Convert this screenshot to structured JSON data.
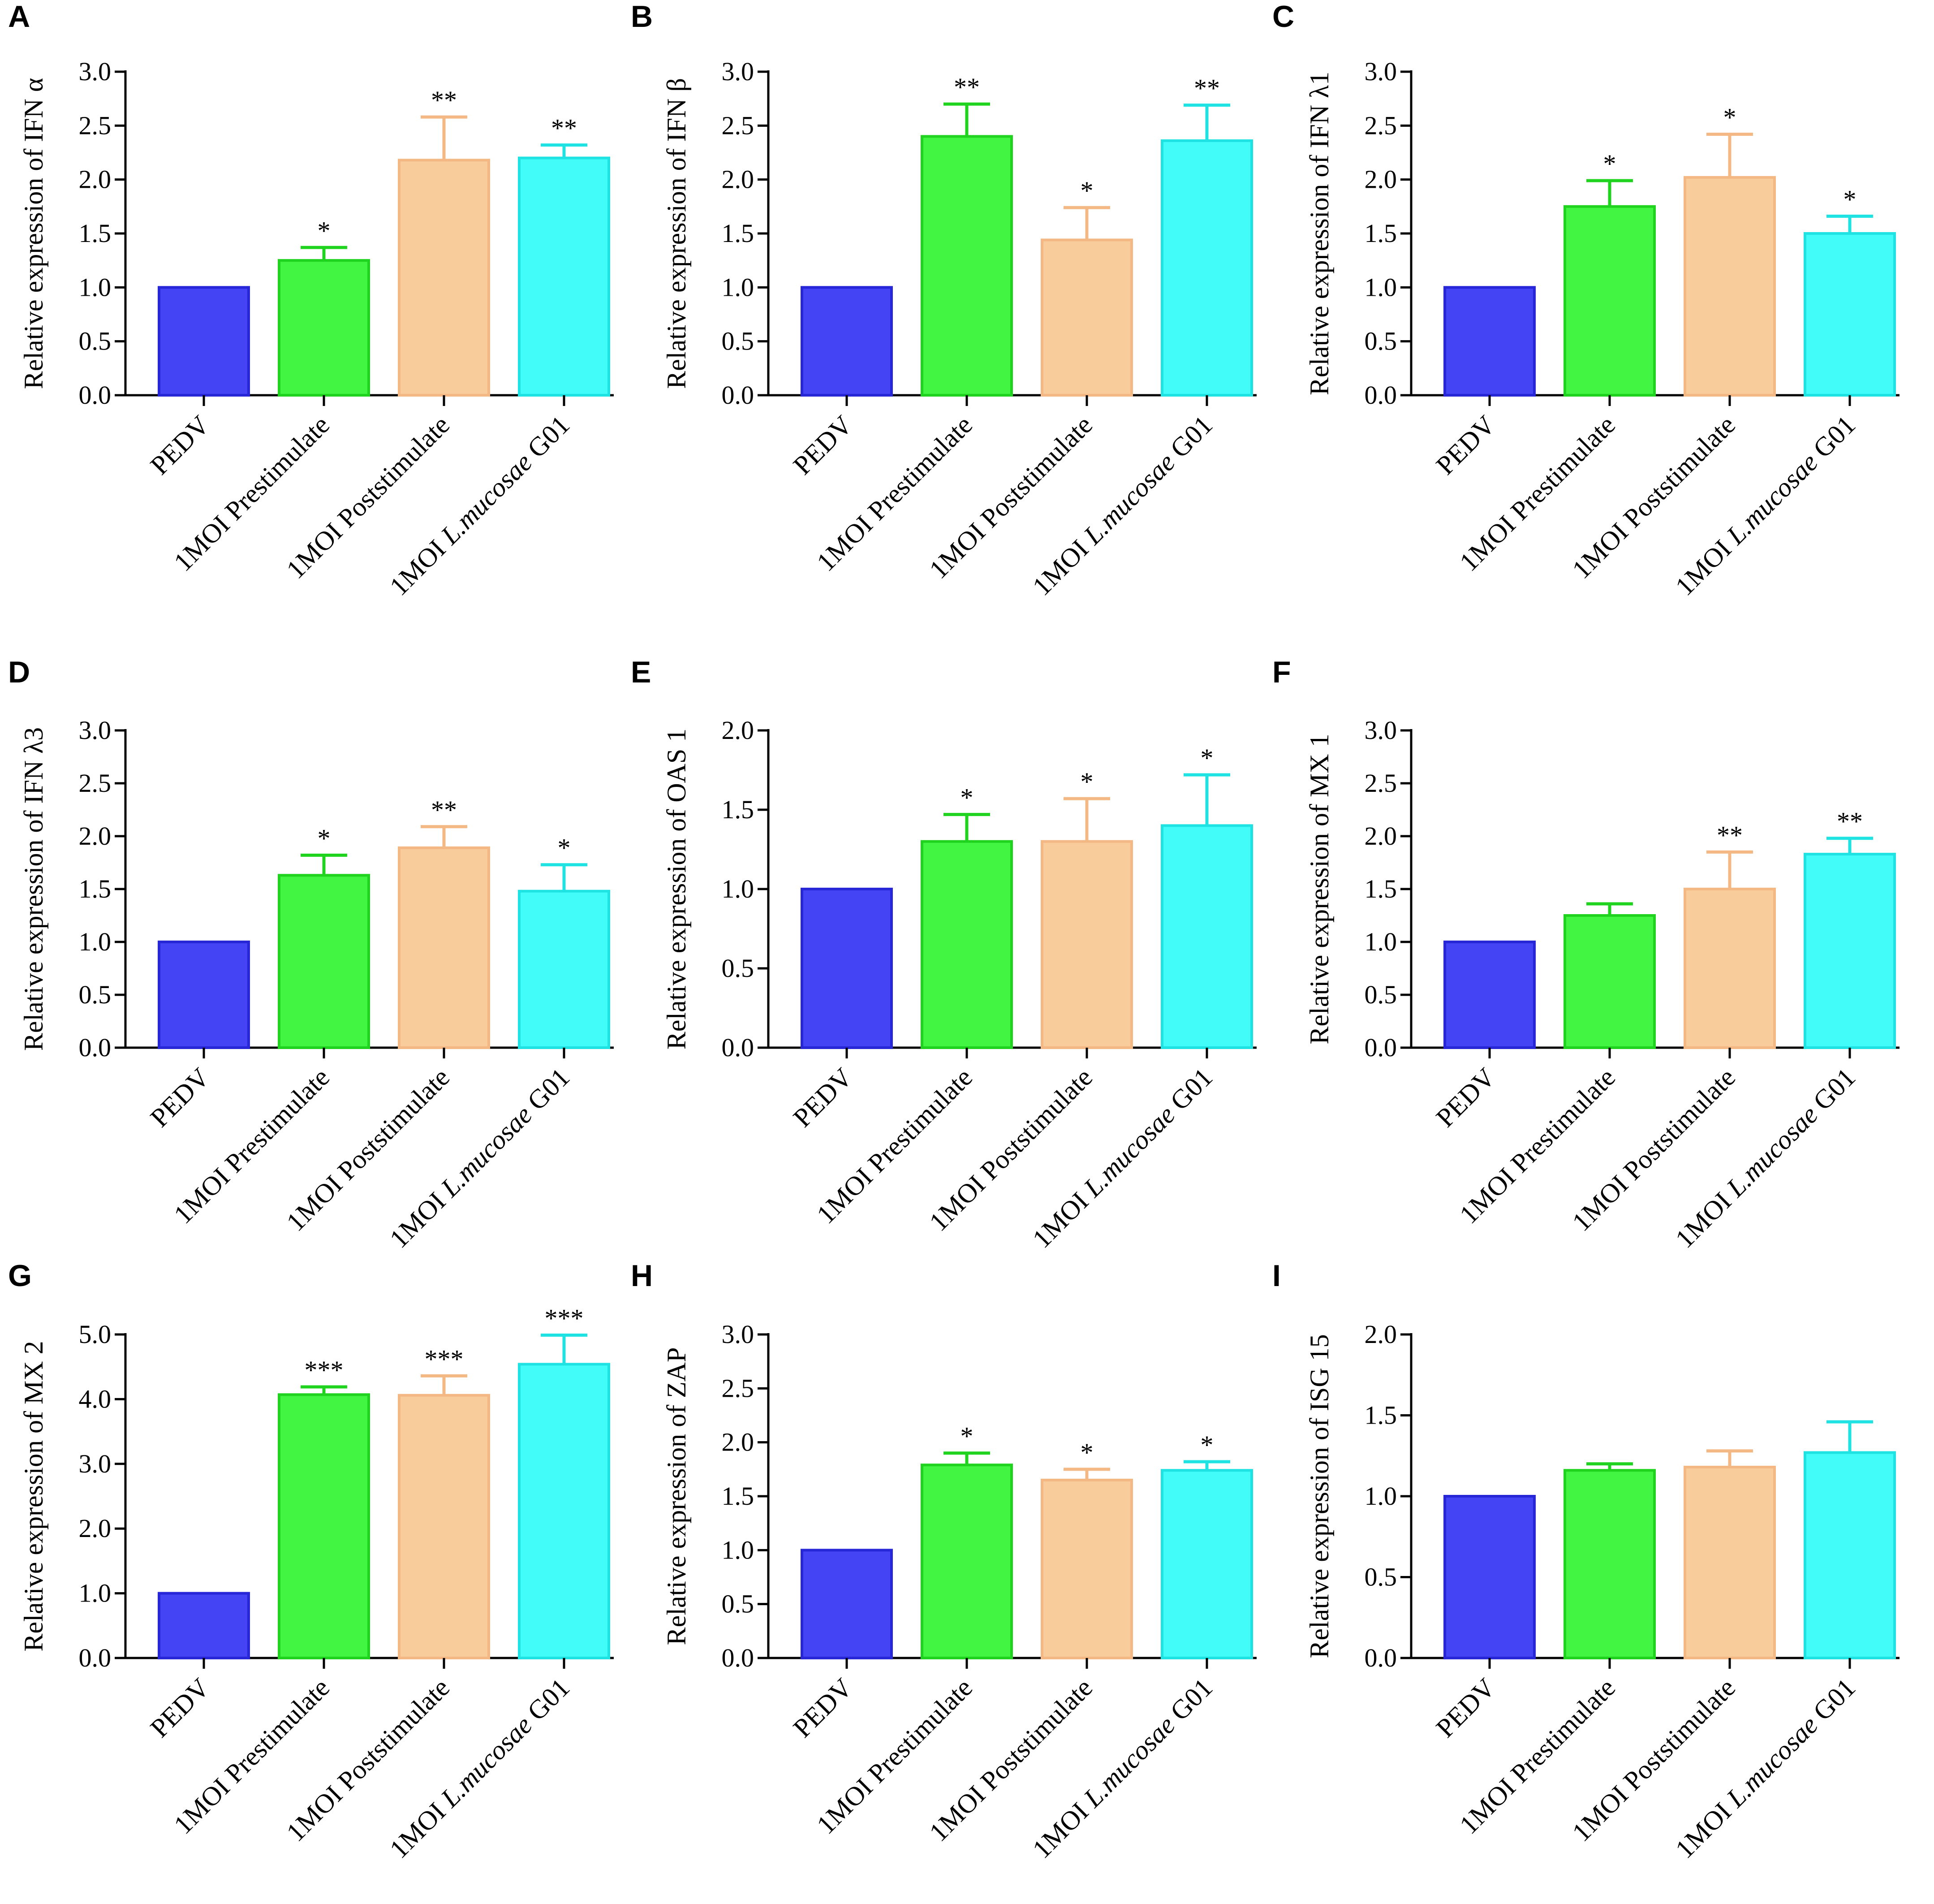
{
  "colors": {
    "series": [
      "#4444f5",
      "#42f542",
      "#f9cc9c",
      "#42fcfa"
    ],
    "series_stroke": [
      "#2727d8",
      "#1fd31f",
      "#f3b883",
      "#1fe3e2"
    ],
    "axis": "#000000"
  },
  "chart_data": [
    {
      "panel": "A",
      "type": "bar",
      "ylabel": "Relative expression of IFN α",
      "ylim": [
        0,
        3.0
      ],
      "yticks": [
        "0.0",
        "0.5",
        "1.0",
        "1.5",
        "2.0",
        "2.5",
        "3.0"
      ],
      "categories": [
        {
          "main": "PEDV"
        },
        {
          "main": "1MOI Prestimulate"
        },
        {
          "main": "1MOI Poststimulate"
        },
        {
          "main": "1MOI ",
          "italic": "L.mucosae",
          "suffix": " G01"
        }
      ],
      "values": [
        1.0,
        1.25,
        2.18,
        2.2
      ],
      "errors": [
        0,
        0.12,
        0.4,
        0.12
      ],
      "significance": [
        "",
        "*",
        "**",
        "**"
      ]
    },
    {
      "panel": "B",
      "type": "bar",
      "ylabel": "Relative expression of IFN β",
      "ylim": [
        0,
        3.0
      ],
      "yticks": [
        "0.0",
        "0.5",
        "1.0",
        "1.5",
        "2.0",
        "2.5",
        "3.0"
      ],
      "categories": [
        {
          "main": "PEDV"
        },
        {
          "main": "1MOI Prestimulate"
        },
        {
          "main": "1MOI Poststimulate"
        },
        {
          "main": "1MOI ",
          "italic": "L.mucosae",
          "suffix": " G01"
        }
      ],
      "values": [
        1.0,
        2.4,
        1.44,
        2.36
      ],
      "errors": [
        0,
        0.3,
        0.3,
        0.33
      ],
      "significance": [
        "",
        "**",
        "*",
        "**"
      ]
    },
    {
      "panel": "C",
      "type": "bar",
      "ylabel": "Relative expression of IFN λ1",
      "ylim": [
        0,
        3.0
      ],
      "yticks": [
        "0.0",
        "0.5",
        "1.0",
        "1.5",
        "2.0",
        "2.5",
        "3.0"
      ],
      "categories": [
        {
          "main": "PEDV"
        },
        {
          "main": "1MOI Prestimulate"
        },
        {
          "main": "1MOI Poststimulate"
        },
        {
          "main": "1MOI ",
          "italic": "L.mucosae",
          "suffix": " G01"
        }
      ],
      "values": [
        1.0,
        1.75,
        2.02,
        1.5
      ],
      "errors": [
        0,
        0.24,
        0.4,
        0.16
      ],
      "significance": [
        "",
        "*",
        "*",
        "*"
      ]
    },
    {
      "panel": "D",
      "type": "bar",
      "ylabel": "Relative expression of IFN λ3",
      "ylim": [
        0,
        3.0
      ],
      "yticks": [
        "0.0",
        "0.5",
        "1.0",
        "1.5",
        "2.0",
        "2.5",
        "3.0"
      ],
      "categories": [
        {
          "main": "PEDV"
        },
        {
          "main": "1MOI Prestimulate"
        },
        {
          "main": "1MOI Poststimulate"
        },
        {
          "main": "1MOI ",
          "italic": "L.mucosae",
          "suffix": " G01"
        }
      ],
      "values": [
        1.0,
        1.63,
        1.89,
        1.48
      ],
      "errors": [
        0,
        0.19,
        0.2,
        0.25
      ],
      "significance": [
        "",
        "*",
        "**",
        "*"
      ]
    },
    {
      "panel": "E",
      "type": "bar",
      "ylabel": "Relative expression of OAS 1",
      "ylim": [
        0,
        2.0
      ],
      "yticks": [
        "0.0",
        "0.5",
        "1.0",
        "1.5",
        "2.0"
      ],
      "categories": [
        {
          "main": "PEDV"
        },
        {
          "main": "1MOI Prestimulate"
        },
        {
          "main": "1MOI Poststimulate"
        },
        {
          "main": "1MOI ",
          "italic": "L.mucosae",
          "suffix": " G01"
        }
      ],
      "values": [
        1.0,
        1.3,
        1.3,
        1.4
      ],
      "errors": [
        0,
        0.17,
        0.27,
        0.32
      ],
      "significance": [
        "",
        "*",
        "*",
        "*"
      ]
    },
    {
      "panel": "F",
      "type": "bar",
      "ylabel": "Relative expression of MX 1",
      "ylim": [
        0,
        3.0
      ],
      "yticks": [
        "0.0",
        "0.5",
        "1.0",
        "1.5",
        "2.0",
        "2.5",
        "3.0"
      ],
      "categories": [
        {
          "main": "PEDV"
        },
        {
          "main": "1MOI Prestimulate"
        },
        {
          "main": "1MOI Poststimulate"
        },
        {
          "main": "1MOI ",
          "italic": "L.mucosae",
          "suffix": " G01"
        }
      ],
      "values": [
        1.0,
        1.25,
        1.5,
        1.83
      ],
      "errors": [
        0,
        0.11,
        0.35,
        0.15
      ],
      "significance": [
        "",
        "",
        "**",
        "**"
      ]
    },
    {
      "panel": "G",
      "type": "bar",
      "ylabel": "Relative expression of MX 2",
      "ylim": [
        0,
        5.0
      ],
      "yticks": [
        "0.0",
        "1.0",
        "2.0",
        "3.0",
        "4.0",
        "5.0"
      ],
      "categories": [
        {
          "main": "PEDV"
        },
        {
          "main": "1MOI Prestimulate"
        },
        {
          "main": "1MOI Poststimulate"
        },
        {
          "main": "1MOI ",
          "italic": "L.mucosae",
          "suffix": " G01"
        }
      ],
      "values": [
        1.0,
        4.07,
        4.06,
        4.54
      ],
      "errors": [
        0,
        0.12,
        0.3,
        0.45
      ],
      "significance": [
        "",
        "***",
        "***",
        "***"
      ]
    },
    {
      "panel": "H",
      "type": "bar",
      "ylabel": "Relative expression of ZAP",
      "ylim": [
        0,
        3.0
      ],
      "yticks": [
        "0.0",
        "0.5",
        "1.0",
        "1.5",
        "2.0",
        "2.5",
        "3.0"
      ],
      "categories": [
        {
          "main": "PEDV"
        },
        {
          "main": "1MOI Prestimulate"
        },
        {
          "main": "1MOI Poststimulate"
        },
        {
          "main": "1MOI ",
          "italic": "L.mucosae",
          "suffix": " G01"
        }
      ],
      "values": [
        1.0,
        1.79,
        1.65,
        1.74
      ],
      "errors": [
        0,
        0.11,
        0.1,
        0.08
      ],
      "significance": [
        "",
        "*",
        "*",
        "*"
      ]
    },
    {
      "panel": "I",
      "type": "bar",
      "ylabel": "Relative expression of ISG 15",
      "ylim": [
        0,
        2.0
      ],
      "yticks": [
        "0.0",
        "0.5",
        "1.0",
        "1.5",
        "2.0"
      ],
      "categories": [
        {
          "main": "PEDV"
        },
        {
          "main": "1MOI Prestimulate"
        },
        {
          "main": "1MOI Poststimulate"
        },
        {
          "main": "1MOI ",
          "italic": "L.mucosae",
          "suffix": " G01"
        }
      ],
      "values": [
        1.0,
        1.16,
        1.18,
        1.27
      ],
      "errors": [
        0,
        0.04,
        0.1,
        0.19
      ],
      "significance": [
        "",
        "",
        "",
        ""
      ]
    }
  ]
}
